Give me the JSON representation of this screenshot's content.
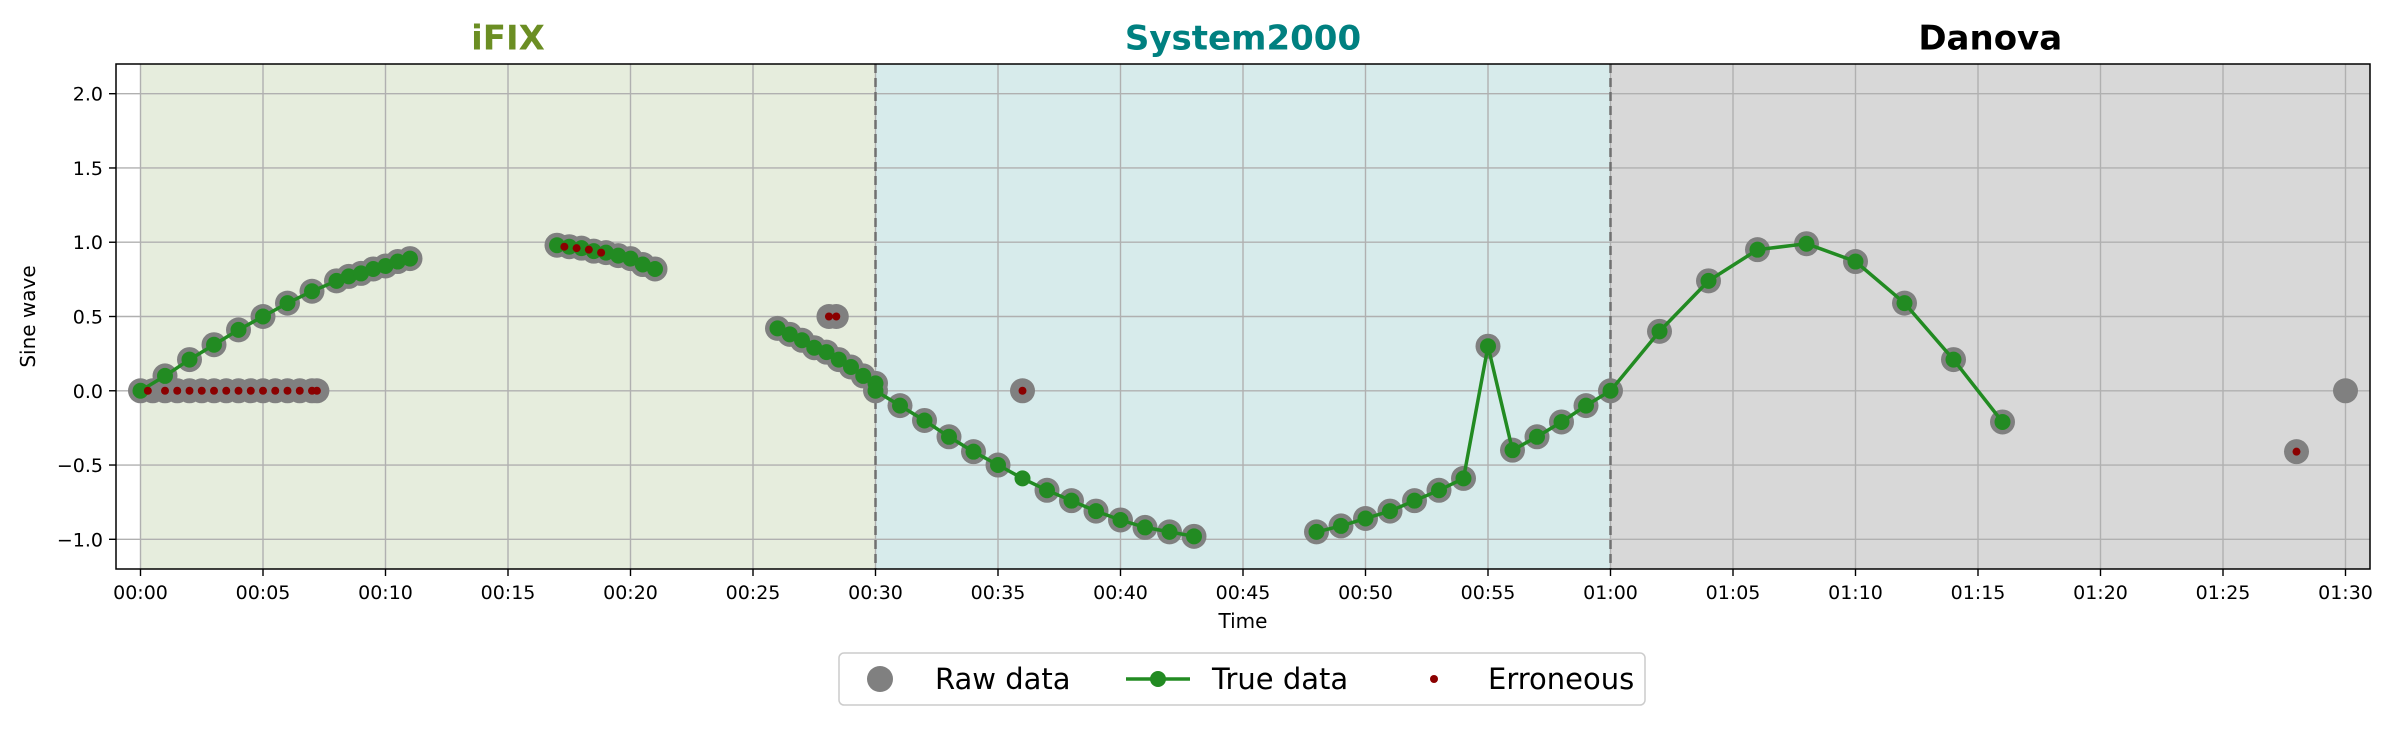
{
  "chart_data": {
    "type": "line",
    "xlabel": "Time",
    "ylabel": "Sine wave",
    "xlim_minutes": [
      -1,
      91
    ],
    "ylim": [
      -1.2,
      2.2
    ],
    "xticks": [
      "00:00",
      "00:05",
      "00:10",
      "00:15",
      "00:20",
      "00:25",
      "00:30",
      "00:35",
      "00:40",
      "00:45",
      "00:50",
      "00:55",
      "01:00",
      "01:05",
      "01:10",
      "01:15",
      "01:20",
      "01:25",
      "01:30"
    ],
    "yticks": [
      "2.0",
      "1.5",
      "1.0",
      "0.5",
      "0.0",
      "−0.5",
      "−1.0"
    ],
    "grid": true,
    "legend_position": "bottom-center",
    "regions": [
      {
        "name": "iFIX",
        "start": "00:00",
        "end": "00:30",
        "color": "#e6eddd",
        "title_color": "#6b8e23"
      },
      {
        "name": "System2000",
        "start": "00:30",
        "end": "01:00",
        "color": "#d7ebeb",
        "title_color": "#008080"
      },
      {
        "name": "Danova",
        "start": "01:00",
        "end": "01:31",
        "color": "#d8d8d8",
        "title_color": "#000000"
      }
    ],
    "region_boundaries": [
      "00:30",
      "01:00"
    ],
    "series": [
      {
        "name": "Raw data",
        "style": "marker",
        "color": "#808080",
        "points": [
          [
            0,
            0
          ],
          [
            0.5,
            0
          ],
          [
            1,
            0
          ],
          [
            1.5,
            0
          ],
          [
            2,
            0
          ],
          [
            2.5,
            0
          ],
          [
            3,
            0
          ],
          [
            3.5,
            0
          ],
          [
            4,
            0
          ],
          [
            4.5,
            0
          ],
          [
            5,
            0
          ],
          [
            5.5,
            0
          ],
          [
            6,
            0
          ],
          [
            6.5,
            0
          ],
          [
            7,
            0
          ],
          [
            7.2,
            0
          ],
          [
            1,
            0.1
          ],
          [
            2,
            0.21
          ],
          [
            3,
            0.31
          ],
          [
            4,
            0.41
          ],
          [
            5,
            0.5
          ],
          [
            6,
            0.59
          ],
          [
            7,
            0.67
          ],
          [
            8,
            0.74
          ],
          [
            8.5,
            0.77
          ],
          [
            9,
            0.79
          ],
          [
            9.5,
            0.82
          ],
          [
            10,
            0.84
          ],
          [
            10.5,
            0.87
          ],
          [
            11,
            0.89
          ],
          [
            17,
            0.98
          ],
          [
            17.5,
            0.97
          ],
          [
            18,
            0.96
          ],
          [
            18.5,
            0.94
          ],
          [
            19,
            0.93
          ],
          [
            19.5,
            0.91
          ],
          [
            20,
            0.89
          ],
          [
            20.5,
            0.85
          ],
          [
            21,
            0.82
          ],
          [
            26,
            0.42
          ],
          [
            26.5,
            0.38
          ],
          [
            27,
            0.34
          ],
          [
            27.5,
            0.29
          ],
          [
            28,
            0.26
          ],
          [
            28.5,
            0.21
          ],
          [
            29,
            0.16
          ],
          [
            29.5,
            0.1
          ],
          [
            30,
            0.05
          ],
          [
            30,
            0
          ],
          [
            28.1,
            0.5
          ],
          [
            28.4,
            0.5
          ],
          [
            31,
            -0.1
          ],
          [
            32,
            -0.2
          ],
          [
            33,
            -0.31
          ],
          [
            34,
            -0.41
          ],
          [
            35,
            -0.5
          ],
          [
            36,
            0
          ],
          [
            37,
            -0.67
          ],
          [
            38,
            -0.74
          ],
          [
            39,
            -0.81
          ],
          [
            40,
            -0.87
          ],
          [
            41,
            -0.92
          ],
          [
            42,
            -0.95
          ],
          [
            43,
            -0.98
          ],
          [
            48,
            -0.95
          ],
          [
            49,
            -0.91
          ],
          [
            50,
            -0.86
          ],
          [
            51,
            -0.81
          ],
          [
            52,
            -0.74
          ],
          [
            53,
            -0.67
          ],
          [
            54,
            -0.59
          ],
          [
            55,
            0.3
          ],
          [
            56,
            -0.4
          ],
          [
            57,
            -0.31
          ],
          [
            58,
            -0.21
          ],
          [
            59,
            -0.1
          ],
          [
            60,
            0
          ],
          [
            62,
            0.4
          ],
          [
            64,
            0.74
          ],
          [
            66,
            0.95
          ],
          [
            68,
            0.99
          ],
          [
            70,
            0.87
          ],
          [
            72,
            0.59
          ],
          [
            74,
            0.21
          ],
          [
            76,
            -0.21
          ],
          [
            88,
            -0.41
          ],
          [
            90,
            0
          ]
        ]
      },
      {
        "name": "True data",
        "style": "line",
        "color": "#228b22",
        "segments": [
          [
            [
              0,
              0
            ],
            [
              1,
              0.1
            ],
            [
              2,
              0.21
            ],
            [
              3,
              0.31
            ],
            [
              4,
              0.41
            ],
            [
              5,
              0.5
            ],
            [
              6,
              0.59
            ],
            [
              7,
              0.67
            ],
            [
              8,
              0.74
            ],
            [
              8.5,
              0.77
            ],
            [
              9,
              0.79
            ],
            [
              9.5,
              0.82
            ],
            [
              10,
              0.84
            ],
            [
              10.5,
              0.87
            ],
            [
              11,
              0.89
            ]
          ],
          [
            [
              17,
              0.98
            ],
            [
              17.5,
              0.97
            ],
            [
              18,
              0.96
            ],
            [
              18.5,
              0.94
            ],
            [
              19,
              0.93
            ],
            [
              19.5,
              0.91
            ],
            [
              20,
              0.89
            ],
            [
              20.5,
              0.85
            ],
            [
              21,
              0.82
            ]
          ],
          [
            [
              26,
              0.42
            ],
            [
              26.5,
              0.38
            ],
            [
              27,
              0.34
            ],
            [
              27.5,
              0.29
            ],
            [
              28,
              0.26
            ],
            [
              28.5,
              0.21
            ],
            [
              29,
              0.16
            ],
            [
              29.5,
              0.1
            ],
            [
              30,
              0.05
            ],
            [
              30,
              0
            ],
            [
              31,
              -0.1
            ],
            [
              32,
              -0.2
            ],
            [
              33,
              -0.31
            ],
            [
              34,
              -0.41
            ],
            [
              35,
              -0.5
            ],
            [
              36,
              -0.59
            ],
            [
              37,
              -0.67
            ],
            [
              38,
              -0.74
            ],
            [
              39,
              -0.81
            ],
            [
              40,
              -0.87
            ],
            [
              41,
              -0.92
            ],
            [
              42,
              -0.95
            ],
            [
              43,
              -0.98
            ]
          ],
          [
            [
              48,
              -0.95
            ],
            [
              49,
              -0.91
            ],
            [
              50,
              -0.86
            ],
            [
              51,
              -0.81
            ],
            [
              52,
              -0.74
            ],
            [
              53,
              -0.67
            ],
            [
              54,
              -0.59
            ],
            [
              55,
              0.3
            ],
            [
              56,
              -0.4
            ],
            [
              57,
              -0.31
            ],
            [
              58,
              -0.21
            ],
            [
              59,
              -0.1
            ],
            [
              60,
              0
            ],
            [
              62,
              0.4
            ],
            [
              64,
              0.74
            ],
            [
              66,
              0.95
            ],
            [
              68,
              0.99
            ],
            [
              70,
              0.87
            ],
            [
              72,
              0.59
            ],
            [
              74,
              0.21
            ],
            [
              76,
              -0.21
            ]
          ]
        ]
      },
      {
        "name": "Erroneous",
        "style": "marker",
        "color": "#8b0000",
        "points": [
          [
            0.3,
            0
          ],
          [
            1,
            0
          ],
          [
            1.5,
            0
          ],
          [
            2,
            0
          ],
          [
            2.5,
            0
          ],
          [
            3,
            0
          ],
          [
            3.5,
            0
          ],
          [
            4,
            0
          ],
          [
            4.5,
            0
          ],
          [
            5,
            0
          ],
          [
            5.5,
            0
          ],
          [
            6,
            0
          ],
          [
            6.5,
            0
          ],
          [
            7,
            0
          ],
          [
            7.2,
            0
          ],
          [
            17.3,
            0.97
          ],
          [
            17.8,
            0.96
          ],
          [
            18.3,
            0.95
          ],
          [
            18.8,
            0.93
          ],
          [
            28.1,
            0.5
          ],
          [
            28.4,
            0.5
          ],
          [
            36,
            0
          ],
          [
            88,
            -0.41
          ]
        ]
      }
    ]
  }
}
